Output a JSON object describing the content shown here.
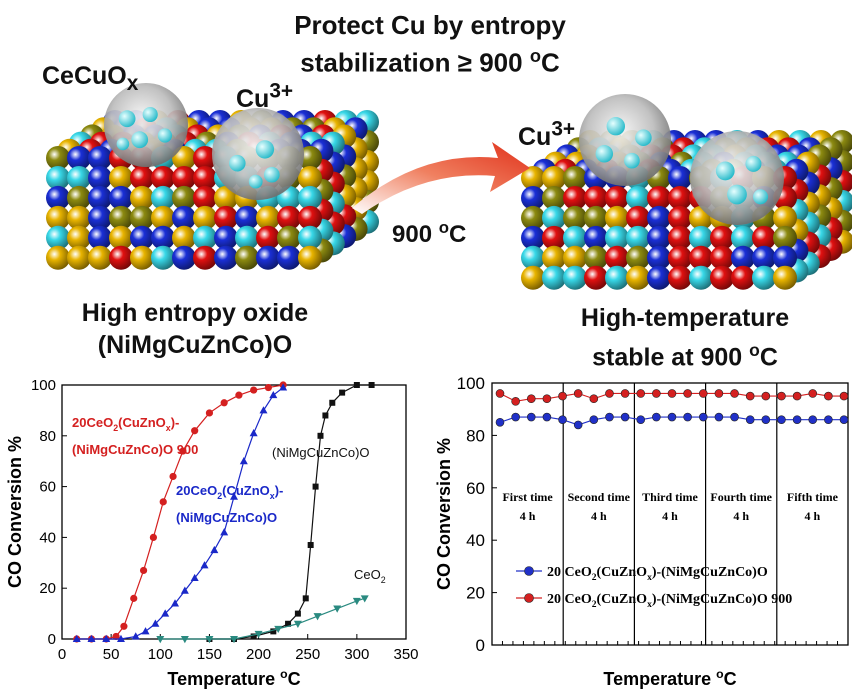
{
  "top": {
    "headline_1": "Protect Cu by entropy",
    "headline_2": "stabilization ≥ 900 °C",
    "left_label_cecuox": "CeCuOx",
    "left_label_cu3": "Cu3+",
    "right_label_cu3": "Cu3+",
    "arrow_label": "900 °C",
    "left_caption_1": "High entropy oxide",
    "left_caption_2": "(NiMgCuZnCo)O",
    "right_caption_1": "High-temperature",
    "right_caption_2": "stable at 900 °C",
    "colors": {
      "arrow": "#e0402a",
      "sphere_gold": "#e8b400",
      "sphere_red": "#e01010",
      "sphere_blue": "#1a2fd6",
      "sphere_cyan": "#38d8e8",
      "sphere_olive": "#8c8a10"
    }
  },
  "chart_data": [
    {
      "type": "line",
      "xlabel": "Temperature °C",
      "ylabel": "CO Conversion %",
      "xlim": [
        0,
        350
      ],
      "ylim": [
        0,
        100
      ],
      "xticks": [
        0,
        50,
        100,
        150,
        200,
        250,
        300,
        350
      ],
      "yticks": [
        0,
        20,
        40,
        60,
        80,
        100
      ],
      "series": [
        {
          "name": "20CeO2(CuZnOx)-(NiMgCuZnCo)O 900",
          "color": "#d42020",
          "marker": "circle",
          "x": [
            15,
            30,
            45,
            55,
            63,
            73,
            83,
            93,
            103,
            113,
            123,
            135,
            150,
            165,
            180,
            195,
            210,
            225
          ],
          "y": [
            0,
            0,
            0,
            1,
            5,
            16,
            27,
            40,
            54,
            64,
            74,
            82,
            89,
            93,
            96,
            98,
            99,
            100
          ]
        },
        {
          "name": "20CeO2(CuZnOx)-(NiMgCuZnCo)O",
          "color": "#1a28c8",
          "marker": "triangle",
          "x": [
            15,
            30,
            45,
            60,
            75,
            85,
            95,
            105,
            115,
            125,
            135,
            145,
            155,
            165,
            175,
            185,
            195,
            205,
            215,
            225
          ],
          "y": [
            0,
            0,
            0,
            0,
            1,
            3,
            6,
            10,
            14,
            19,
            24,
            29,
            35,
            42,
            56,
            70,
            81,
            90,
            96,
            99
          ]
        },
        {
          "name": "(NiMgCuZnCo)O",
          "color": "#111111",
          "marker": "square",
          "x": [
            150,
            175,
            195,
            215,
            230,
            240,
            248,
            253,
            258,
            263,
            268,
            275,
            285,
            300,
            315
          ],
          "y": [
            0,
            0,
            1,
            3,
            6,
            10,
            16,
            37,
            60,
            80,
            88,
            93,
            97,
            100,
            100
          ]
        },
        {
          "name": "CeO2",
          "color": "#2a8a80",
          "marker": "triangle-down",
          "x": [
            100,
            125,
            150,
            175,
            200,
            220,
            240,
            260,
            280,
            300,
            308
          ],
          "y": [
            0,
            0,
            0,
            0,
            2,
            4,
            6,
            9,
            12,
            15,
            16
          ]
        }
      ],
      "annotations": [
        {
          "text_1": "20CeO2(CuZnOx)-",
          "text_2": "(NiMgCuZnCo)O 900",
          "color": "#d42020"
        },
        {
          "text_1": "20CeO2(CuZnOx)-",
          "text_2": "(NiMgCuZnCo)O",
          "color": "#1a28c8"
        },
        {
          "text": "(NiMgCuZnCo)O",
          "color": "#111111"
        },
        {
          "text": "CeO2",
          "color": "#111111"
        }
      ]
    },
    {
      "type": "line",
      "xlabel": "Temperature °C",
      "ylabel": "CO Conversion %",
      "ylim": [
        0,
        100
      ],
      "yticks": [
        0,
        20,
        40,
        60,
        80,
        100
      ],
      "segments": [
        {
          "label_1": "First time",
          "label_2": "4 h"
        },
        {
          "label_1": "Second time",
          "label_2": "4 h"
        },
        {
          "label_1": "Third time",
          "label_2": "4 h"
        },
        {
          "label_1": "Fourth time",
          "label_2": "4 h"
        },
        {
          "label_1": "Fifth time",
          "label_2": "4 h"
        }
      ],
      "series": [
        {
          "name": "20 CeO2(CuZnOx)-(NiMgCuZnCo)O",
          "color": "#2030c8",
          "y": [
            85,
            87,
            87,
            87,
            86,
            84,
            86,
            87,
            87,
            86,
            87,
            87,
            87,
            87,
            87,
            87,
            86,
            86,
            86,
            86,
            86,
            86,
            86
          ]
        },
        {
          "name": "20 CeO2(CuZnOx)-(NiMgCuZnCo)O 900",
          "color": "#d42020",
          "y": [
            96,
            93,
            94,
            94,
            95,
            96,
            94,
            96,
            96,
            96,
            96,
            96,
            96,
            96,
            96,
            96,
            95,
            95,
            95,
            95,
            96,
            95,
            95
          ]
        }
      ],
      "legend_position": "lower-left"
    }
  ]
}
